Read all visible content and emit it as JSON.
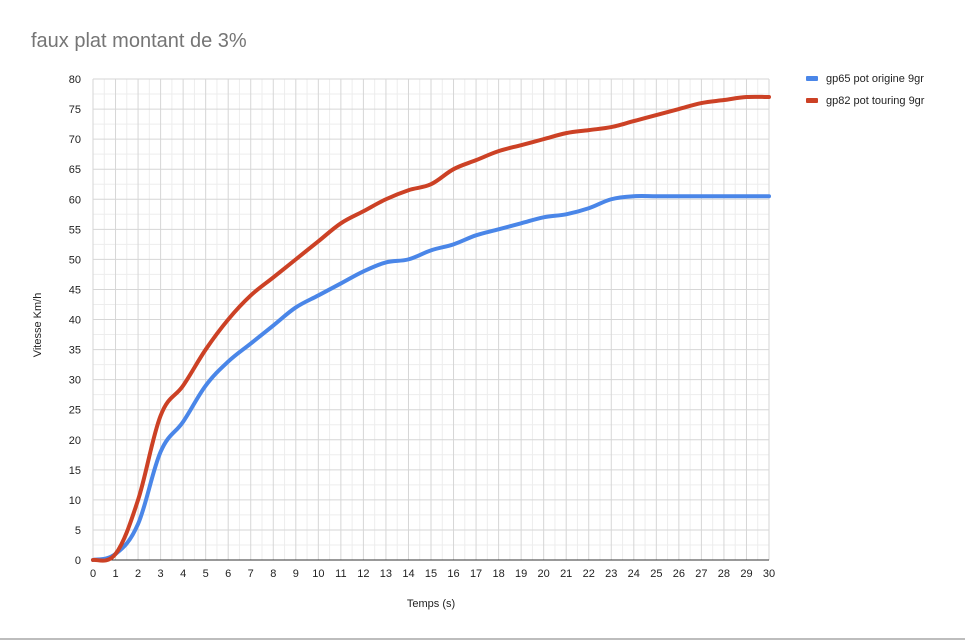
{
  "chart_data": {
    "type": "line",
    "title": "faux plat montant de 3%",
    "xlabel": "Temps (s)",
    "ylabel": "Vitesse Km/h",
    "xlim": [
      0,
      30
    ],
    "ylim": [
      0,
      80
    ],
    "x_ticks": [
      0,
      1,
      2,
      3,
      4,
      5,
      6,
      7,
      8,
      9,
      10,
      11,
      12,
      13,
      14,
      15,
      16,
      17,
      18,
      19,
      20,
      21,
      22,
      23,
      24,
      25,
      26,
      27,
      28,
      29,
      30
    ],
    "y_ticks": [
      0,
      5,
      10,
      15,
      20,
      25,
      30,
      35,
      40,
      45,
      50,
      55,
      60,
      65,
      70,
      75,
      80
    ],
    "grid": true,
    "legend_position": "top-right",
    "series": [
      {
        "name": "gp65 pot origine 9gr",
        "color": "#4a86e8",
        "x": [
          0,
          1,
          2,
          3,
          4,
          5,
          6,
          7,
          8,
          9,
          10,
          11,
          12,
          13,
          14,
          15,
          16,
          17,
          18,
          19,
          20,
          21,
          22,
          23,
          24,
          25,
          26,
          27,
          28,
          29,
          30
        ],
        "values": [
          0,
          1,
          6,
          18,
          23,
          29,
          33,
          36,
          39,
          42,
          44,
          46,
          48,
          49.5,
          50,
          51.5,
          52.5,
          54,
          55,
          56,
          57,
          57.5,
          58.5,
          60,
          60.5,
          60.5,
          60.5,
          60.5,
          60.5,
          60.5,
          60.5
        ]
      },
      {
        "name": "gp82 pot touring 9gr",
        "color": "#cc4125",
        "x": [
          0,
          1,
          2,
          3,
          4,
          5,
          6,
          7,
          8,
          9,
          10,
          11,
          12,
          13,
          14,
          15,
          16,
          17,
          18,
          19,
          20,
          21,
          22,
          23,
          24,
          25,
          26,
          27,
          28,
          29,
          30
        ],
        "values": [
          0,
          1,
          10,
          24,
          29,
          35,
          40,
          44,
          47,
          50,
          53,
          56,
          58,
          60,
          61.5,
          62.5,
          65,
          66.5,
          68,
          69,
          70,
          71,
          71.5,
          72,
          73,
          74,
          75,
          76,
          76.5,
          77,
          77
        ]
      }
    ]
  }
}
